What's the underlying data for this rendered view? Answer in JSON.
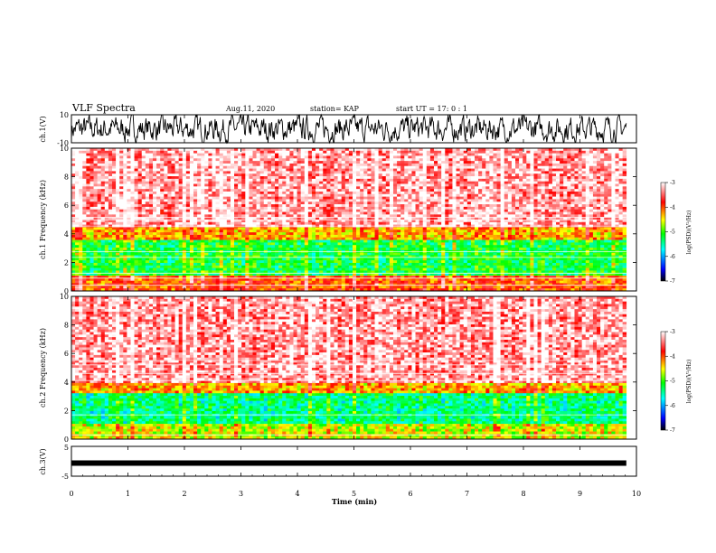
{
  "header": {
    "title": "VLF Spectra",
    "date": "Aug.11, 2020",
    "station": "station= KAP",
    "start": "start  UT =   17: 0  : 1"
  },
  "colorbar": {
    "label": "log(PSD)(V²/Hz)",
    "ticks": [
      "-3",
      "-4",
      "-5",
      "-6",
      "-7"
    ],
    "range": [
      -7,
      -3
    ],
    "colors": [
      "#000000",
      "#0000ff",
      "#00ffff",
      "#00ff00",
      "#ffff00",
      "#ff0000",
      "#ffffff"
    ]
  },
  "chart_data": [
    {
      "type": "line",
      "name": "ch1-waveform",
      "ylabel": "ch.1(V)",
      "ylim": [
        -10,
        10
      ],
      "yticks": [
        "10",
        "-10"
      ],
      "xlim": [
        0,
        10
      ],
      "note_values": "dense noise trace centred near 0 V, spanning about -10 to +10 V",
      "color": "#000000"
    },
    {
      "type": "heatmap",
      "name": "ch1-spectrogram",
      "ylabel": "ch.1 Frequency (kHz)",
      "ylim": [
        0,
        10
      ],
      "yticks": [
        "0",
        "2",
        "4",
        "6",
        "8",
        "10"
      ],
      "xlim": [
        0,
        10
      ],
      "bands": [
        {
          "from": 0,
          "to": 1.0,
          "level": -4.0
        },
        {
          "from": 1.0,
          "to": 3.5,
          "level": -5.2
        },
        {
          "from": 3.5,
          "to": 4.5,
          "level": -4.3
        },
        {
          "from": 4.5,
          "to": 10,
          "level": -3.3
        }
      ],
      "line_freqs_khz": [
        0.4,
        0.9,
        1.25,
        2.35,
        2.75,
        4.55,
        4.95,
        5.15
      ]
    },
    {
      "type": "heatmap",
      "name": "ch2-spectrogram",
      "ylabel": "ch.2 Frequency (kHz)",
      "ylim": [
        0,
        10
      ],
      "yticks": [
        "0",
        "2",
        "4",
        "6",
        "8",
        "10"
      ],
      "xlim": [
        0,
        10
      ],
      "bands": [
        {
          "from": 0,
          "to": 1.0,
          "level": -4.6
        },
        {
          "from": 1.0,
          "to": 3.2,
          "level": -5.4
        },
        {
          "from": 3.2,
          "to": 4.0,
          "level": -4.3
        },
        {
          "from": 4.0,
          "to": 10,
          "level": -3.3
        }
      ],
      "line_freqs_khz": [
        0.3,
        1.7,
        4.1,
        4.6,
        5.2,
        5.5
      ]
    },
    {
      "type": "line",
      "name": "ch3-waveform",
      "ylabel": "ch.3(V)",
      "ylim": [
        -5,
        5
      ],
      "yticks": [
        "5",
        "-5"
      ],
      "xlim": [
        0,
        10
      ],
      "note_values": "flat thick trace near -0.6 V",
      "color": "#000000"
    }
  ],
  "xaxis": {
    "label": "Time  (min)",
    "ticks": [
      "0",
      "1",
      "2",
      "3",
      "4",
      "5",
      "6",
      "7",
      "8",
      "9",
      "10"
    ],
    "data_end_min": 9.82
  }
}
